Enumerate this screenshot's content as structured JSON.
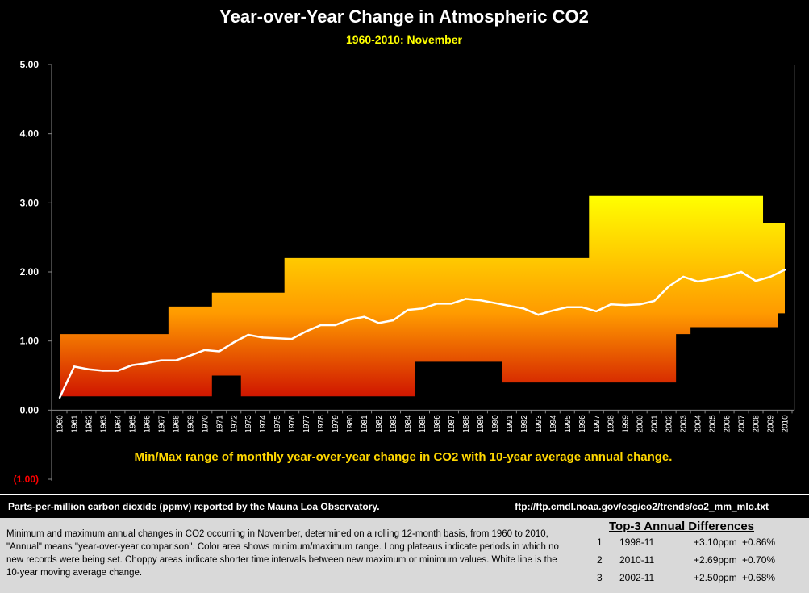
{
  "chart_data": {
    "type": "area",
    "title": "Year-over-Year Change in Atmospheric CO2",
    "subtitle": "1960-2010:  November",
    "annotation": "Min/Max range of monthly year-over-year change in CO2 with 10-year average annual change.",
    "xlabel": "",
    "ylabel": "",
    "ylim": [
      -1,
      5
    ],
    "y_ticks": [
      "5.00",
      "4.00",
      "3.00",
      "2.00",
      "1.00",
      "0.00",
      "(1.00)"
    ],
    "y_tick_values": [
      5,
      4,
      3,
      2,
      1,
      0,
      -1
    ],
    "categories": [
      "1960",
      "1961",
      "1962",
      "1963",
      "1964",
      "1965",
      "1966",
      "1967",
      "1968",
      "1969",
      "1970",
      "1971",
      "1972",
      "1973",
      "1974",
      "1975",
      "1976",
      "1977",
      "1978",
      "1979",
      "1980",
      "1981",
      "1982",
      "1983",
      "1984",
      "1985",
      "1986",
      "1987",
      "1988",
      "1989",
      "1990",
      "1991",
      "1992",
      "1993",
      "1994",
      "1995",
      "1996",
      "1997",
      "1998",
      "1999",
      "2000",
      "2001",
      "2002",
      "2003",
      "2004",
      "2005",
      "2006",
      "2007",
      "2008",
      "2009",
      "2010"
    ],
    "series": [
      {
        "name": "Maximum",
        "values": [
          1.1,
          1.1,
          1.1,
          1.1,
          1.1,
          1.1,
          1.1,
          1.1,
          1.5,
          1.5,
          1.5,
          1.7,
          1.7,
          1.7,
          1.7,
          1.7,
          2.2,
          2.2,
          2.2,
          2.2,
          2.2,
          2.2,
          2.2,
          2.2,
          2.2,
          2.2,
          2.2,
          2.2,
          2.2,
          2.2,
          2.2,
          2.2,
          2.2,
          2.2,
          2.2,
          2.2,
          2.2,
          3.1,
          3.1,
          3.1,
          3.1,
          3.1,
          3.1,
          3.1,
          3.1,
          3.1,
          3.1,
          3.1,
          3.1,
          2.7,
          2.7
        ]
      },
      {
        "name": "Minimum",
        "values": [
          0.2,
          0.2,
          0.2,
          0.2,
          0.2,
          0.2,
          0.2,
          0.2,
          0.2,
          0.2,
          0.2,
          0.5,
          0.5,
          0.2,
          0.2,
          0.2,
          0.2,
          0.2,
          0.2,
          0.2,
          0.2,
          0.2,
          0.2,
          0.2,
          0.2,
          0.7,
          0.7,
          0.7,
          0.7,
          0.7,
          0.7,
          0.4,
          0.4,
          0.4,
          0.4,
          0.4,
          0.4,
          0.4,
          0.4,
          0.4,
          0.4,
          0.4,
          0.4,
          1.1,
          1.2,
          1.2,
          1.2,
          1.2,
          1.2,
          1.2,
          1.4
        ]
      },
      {
        "name": "10-year average annual change",
        "values": [
          0.18,
          0.63,
          0.59,
          0.57,
          0.57,
          0.65,
          0.68,
          0.72,
          0.72,
          0.79,
          0.87,
          0.85,
          0.98,
          1.09,
          1.05,
          1.04,
          1.03,
          1.14,
          1.23,
          1.23,
          1.31,
          1.35,
          1.26,
          1.3,
          1.45,
          1.47,
          1.54,
          1.54,
          1.61,
          1.59,
          1.55,
          1.51,
          1.47,
          1.38,
          1.44,
          1.49,
          1.49,
          1.43,
          1.53,
          1.52,
          1.53,
          1.58,
          1.79,
          1.93,
          1.86,
          1.9,
          1.94,
          2.0,
          1.87,
          1.93,
          2.03
        ]
      }
    ]
  },
  "colors": {
    "background": "#000000",
    "area_top": "#ffff00",
    "area_mid": "#ff9a00",
    "area_bottom": "#c80000",
    "avg_line": "#ffffff",
    "annotation": "#ffd700",
    "subtitle": "#ffff00",
    "negative_tick": "#ff0000"
  },
  "footer": {
    "source_left": "Parts-per-million carbon dioxide (ppmv) reported by the Mauna Loa Observatory.",
    "source_right": "ftp://ftp.cmdl.noaa.gov/ccg/co2/trends/co2_mm_mlo.txt"
  },
  "description": "Minimum and maximum annual changes in CO2 occurring in November, determined on a rolling 12-month basis, from 1960 to 2010, \"Annual\" means \"year-over-year comparison\". Color area shows minimum/maximum range. Long plateaus indicate periods in which no new records were being set. Choppy areas indicate shorter time intervals between new maximum or minimum values. White line is the 10-year moving average change.",
  "top3": {
    "title": "Top-3 Annual Differences",
    "rows": [
      {
        "rank": "1",
        "period": "1998-11",
        "ppm": "+3.10ppm",
        "pct": "+0.86%"
      },
      {
        "rank": "2",
        "period": "2010-11",
        "ppm": "+2.69ppm",
        "pct": "+0.70%"
      },
      {
        "rank": "3",
        "period": "2002-11",
        "ppm": "+2.50ppm",
        "pct": "+0.68%"
      }
    ]
  }
}
